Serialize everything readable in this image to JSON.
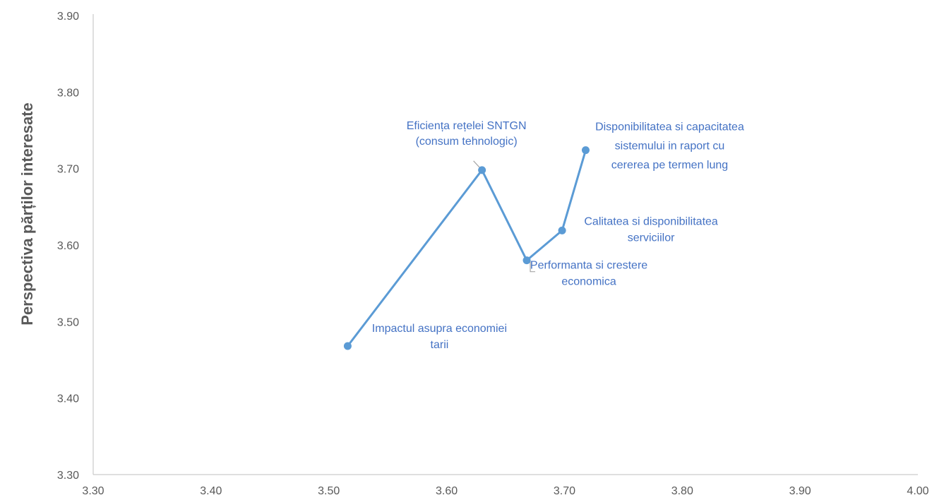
{
  "chart_data": {
    "type": "line",
    "title": "",
    "xlabel": "",
    "ylabel": "Perspectiva părților interesate",
    "xlim": [
      3.3,
      4.0
    ],
    "ylim": [
      3.3,
      3.9
    ],
    "x_ticks": [
      "3.30",
      "3.40",
      "3.50",
      "3.60",
      "3.70",
      "3.80",
      "3.90",
      "4.00"
    ],
    "y_ticks": [
      "3.30",
      "3.40",
      "3.50",
      "3.60",
      "3.70",
      "3.80",
      "3.90"
    ],
    "grid": false,
    "legend": "none",
    "line_color": "#5b9bd5",
    "label_color": "#4472c4",
    "points": [
      {
        "x": 3.516,
        "y": 3.468,
        "label": [
          "Impactul asupra economiei",
          "tarii"
        ]
      },
      {
        "x": 3.63,
        "y": 3.698,
        "label": [
          "Eficiența rețelei SNTGN",
          "(consum tehnologic)"
        ]
      },
      {
        "x": 3.668,
        "y": 3.58,
        "label": [
          "Performanta si crestere",
          "economica"
        ]
      },
      {
        "x": 3.698,
        "y": 3.619,
        "label": [
          "Calitatea  si disponibilitatea",
          "serviciilor"
        ]
      },
      {
        "x": 3.718,
        "y": 3.724,
        "label": [
          "Disponibilitatea si capacitatea",
          "sistemului in raport cu",
          "cererea pe termen lung"
        ]
      }
    ]
  }
}
